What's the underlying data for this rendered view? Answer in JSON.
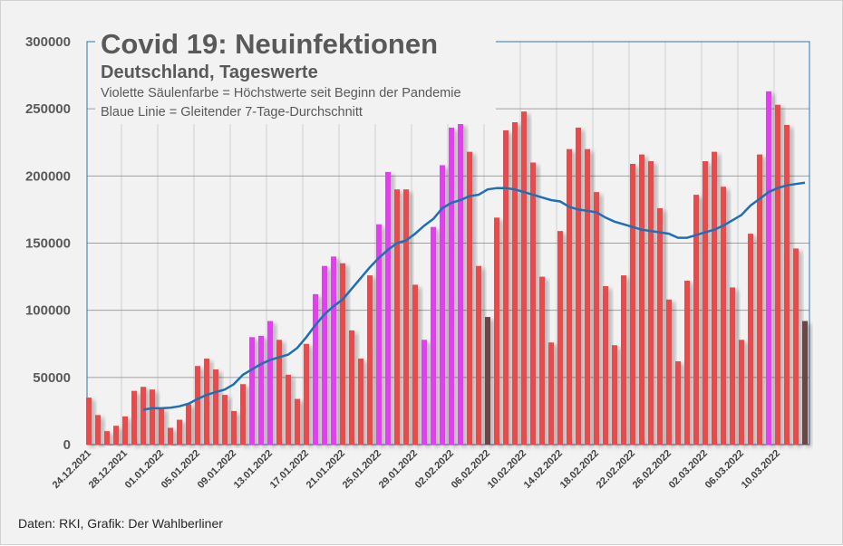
{
  "chart_data": {
    "type": "bar",
    "title": "Covid 19: Neuinfektionen",
    "subtitle": "Deutschland, Tageswerte",
    "notes": [
      "Violette Säulenfarbe = Höchstwerte seit Beginn der Pandemie",
      "Blaue Linie = Gleitender 7-Tage-Durchschnitt"
    ],
    "source": "Daten: RKI, Grafik: Der Wahlberliner",
    "xlabel": "",
    "ylabel": "",
    "ylim": [
      0,
      300000
    ],
    "yticks": [
      "0",
      "50000",
      "100000",
      "150000",
      "200000",
      "250000",
      "300000"
    ],
    "start_date": "24.12.2021",
    "xtick_labels": [
      "24.12.2021",
      "28.12.2021",
      "01.01.2022",
      "05.01.2022",
      "09.01.2022",
      "13.01.2022",
      "17.01.2022",
      "21.01.2022",
      "25.01.2022",
      "29.01.2022",
      "02.02.2022",
      "06.02.2022",
      "10.02.2022",
      "14.02.2022",
      "18.02.2022",
      "22.02.2022",
      "26.02.2022",
      "02.03.2022",
      "06.03.2022",
      "10.03.2022"
    ],
    "grid": true,
    "colors": {
      "r": "#e84c4c",
      "m": "#e040ee",
      "d": "#6e4545",
      "line": "#1f6fb5",
      "border": "#2e75b6"
    },
    "series": [
      {
        "name": "Neuinfektionen",
        "type": "bar",
        "values": [
          35000,
          22000,
          10000,
          14000,
          21000,
          40000,
          43000,
          41000,
          27000,
          12500,
          18500,
          30000,
          58500,
          64000,
          56000,
          37000,
          25000,
          45000,
          80000,
          81000,
          92000,
          78000,
          52000,
          34000,
          75000,
          112000,
          133000,
          140000,
          135000,
          85000,
          64000,
          126000,
          164000,
          203000,
          190000,
          190000,
          119000,
          78000,
          162000,
          208000,
          236000,
          239000,
          218000,
          133000,
          95000,
          169000,
          234000,
          240000,
          248000,
          210000,
          125000,
          76000,
          159000,
          220000,
          236000,
          220000,
          188000,
          118000,
          74000,
          126000,
          209000,
          216000,
          211000,
          176000,
          108000,
          62000,
          122000,
          186000,
          211000,
          218000,
          192000,
          117000,
          78000,
          157000,
          216000,
          263000,
          253000,
          238000,
          146000,
          92000
        ],
        "color_keys": "rrrrrrrrrrrrrrrrrrmmmrrrrmmmrrrrmmrrrmmmmmrrdrrrrrrrrrrrrrrrrrrrrrrrrrrrrrrmrrrd"
      },
      {
        "name": "Gleitender 7-Tage-Durchschnitt",
        "type": "line",
        "values": [
          null,
          null,
          null,
          null,
          null,
          null,
          26000,
          27000,
          27000,
          27500,
          28500,
          30500,
          34000,
          37000,
          39000,
          41000,
          45000,
          52000,
          56000,
          60000,
          63000,
          65000,
          67000,
          72000,
          80000,
          89000,
          97000,
          103000,
          108000,
          116000,
          124000,
          132000,
          139000,
          145000,
          150000,
          152000,
          157000,
          163000,
          168000,
          176000,
          180000,
          182000,
          185000,
          186000,
          190000,
          191000,
          191000,
          190000,
          188000,
          186000,
          184000,
          182000,
          181000,
          177000,
          175000,
          174000,
          173000,
          169000,
          166000,
          164000,
          162000,
          160000,
          159000,
          158000,
          157000,
          154000,
          154000,
          156000,
          158000,
          160000,
          163000,
          167000,
          171000,
          178000,
          183000,
          188000,
          191000,
          193000,
          194000,
          195000
        ]
      }
    ]
  }
}
